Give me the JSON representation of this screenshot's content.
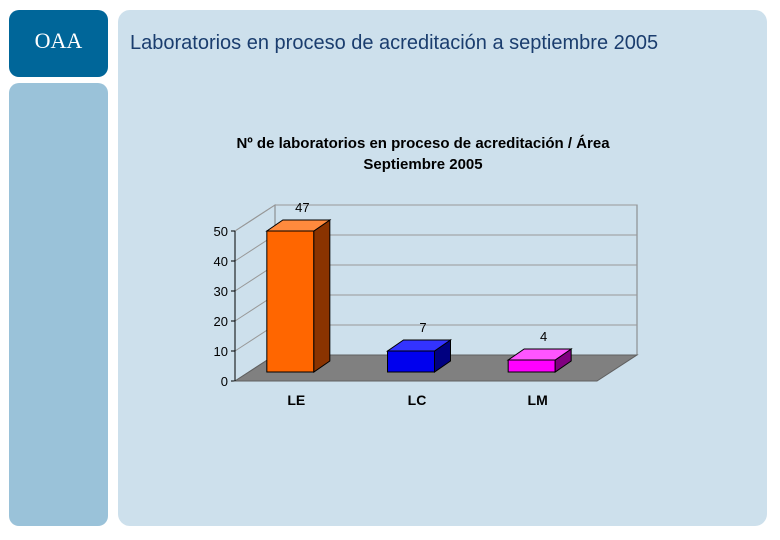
{
  "logo": {
    "text": "OAA"
  },
  "slide": {
    "title": "Laboratorios en proceso de acreditación a septiembre 2005"
  },
  "chart_data": {
    "type": "bar",
    "title": "Nº de laboratorios en proceso de acreditación / Área",
    "subtitle": "Septiembre 2005",
    "categories": [
      "LE",
      "LC",
      "LM"
    ],
    "values": [
      47,
      7,
      4
    ],
    "colors": [
      "#ff6600",
      "#0000ee",
      "#ff00ff"
    ],
    "side_colors": [
      "#8a3300",
      "#000080",
      "#800080"
    ],
    "top_colors": [
      "#ff8a3d",
      "#3333ff",
      "#ff55ff"
    ],
    "yticks": [
      0,
      10,
      20,
      30,
      40,
      50
    ],
    "ylim": [
      0,
      50
    ],
    "grid": true,
    "three_d": true,
    "wall_color": "#cde0ec",
    "floor_color": "#808080",
    "grid_color": "#999999"
  }
}
